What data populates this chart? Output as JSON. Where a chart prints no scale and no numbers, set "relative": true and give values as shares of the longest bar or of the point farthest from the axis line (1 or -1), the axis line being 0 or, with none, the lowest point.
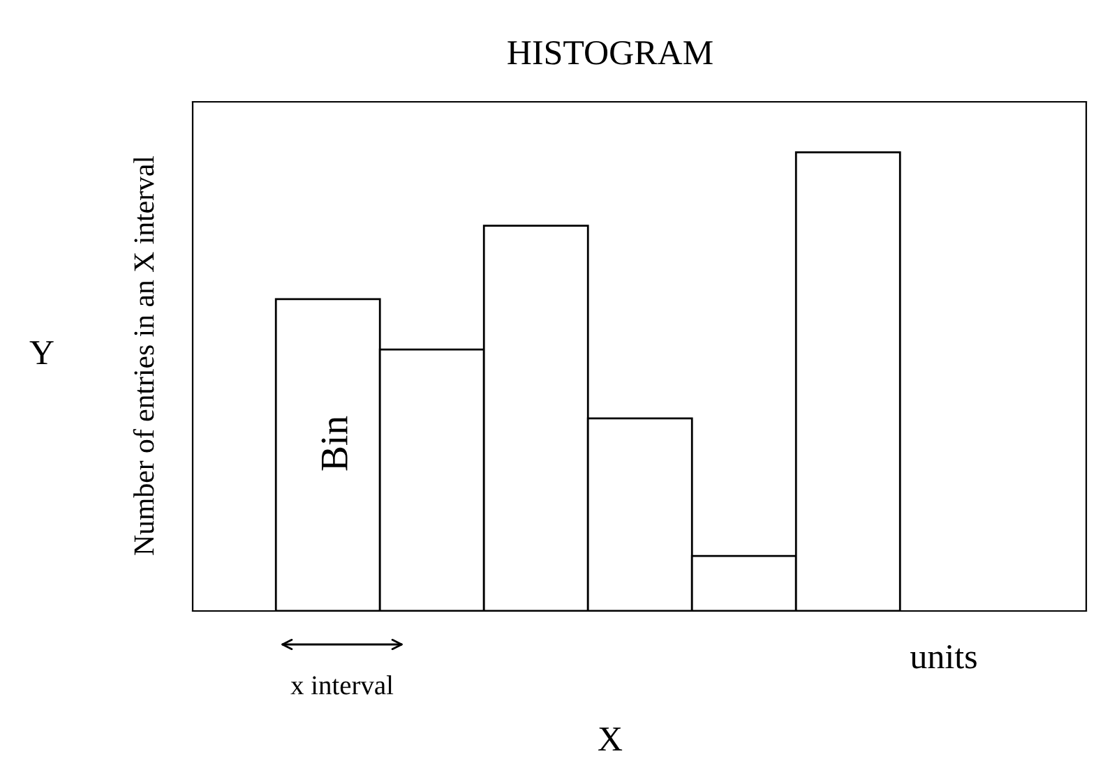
{
  "chart_data": {
    "type": "bar",
    "relative": true,
    "title": "HISTOGRAM",
    "xlabel": "X",
    "ylabel": "Number of entries in an X interval",
    "categories": [
      null,
      null,
      null,
      null,
      null,
      null
    ],
    "values": [
      0.68,
      0.57,
      0.84,
      0.42,
      0.12,
      1.0
    ],
    "color": "#ffffff",
    "annotations": [
      "Y",
      "Bin",
      "x interval",
      "units"
    ],
    "grid": false,
    "legend": false
  }
}
